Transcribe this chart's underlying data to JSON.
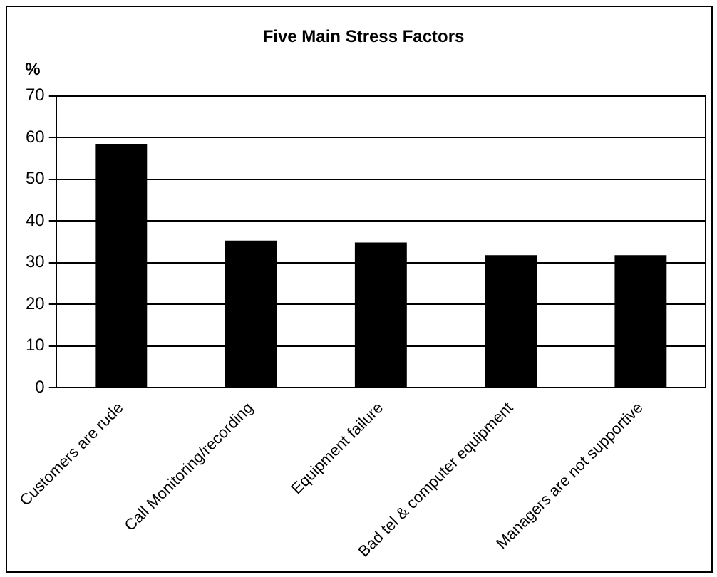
{
  "chart_data": {
    "type": "bar",
    "title": "Five Main Stress Factors",
    "ylabel": "%",
    "categories": [
      "Customers are rude",
      "Call Monitoring/recording",
      "Equipment failure",
      "Bad tel & computer equipment",
      "Managers are not supportive"
    ],
    "values": [
      58.5,
      35.3,
      34.8,
      31.8,
      31.8
    ],
    "color": "#000000",
    "ylim": [
      0,
      70
    ],
    "yticks": [
      0,
      10,
      20,
      30,
      40,
      50,
      60,
      70
    ],
    "grid": "y",
    "legend": false
  }
}
